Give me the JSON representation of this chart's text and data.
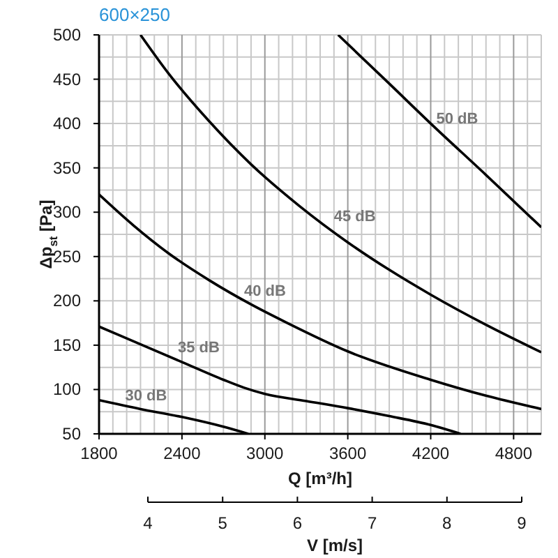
{
  "chart_data": {
    "type": "line",
    "title": "600×250",
    "xlabel": "Q [m³/h]",
    "ylabel": "Δp$_{st}$ [Pa]",
    "x2label": "V [m/s]",
    "xlim": [
      1800,
      5000
    ],
    "xticks": [
      1800,
      {
        "value": 1900,
        "label": null
      },
      {
        "value": 2000,
        "label": null
      },
      {
        "value": 2100,
        "label": null
      },
      {
        "value": 2200,
        "label": null
      },
      {
        "value": 2300,
        "label": null
      },
      2400,
      {
        "value": 2500,
        "label": null
      },
      {
        "value": 2600,
        "label": null
      },
      {
        "value": 2700,
        "label": null
      },
      {
        "value": 2800,
        "label": null
      },
      {
        "value": 2900,
        "label": null
      },
      3000,
      {
        "value": 3100,
        "label": null
      },
      {
        "value": 3200,
        "label": null
      },
      {
        "value": 3300,
        "label": null
      },
      {
        "value": 3400,
        "label": null
      },
      {
        "value": 3500,
        "label": null
      },
      3600,
      {
        "value": 3700,
        "label": null
      },
      {
        "value": 3800,
        "label": null
      },
      {
        "value": 3900,
        "label": null
      },
      {
        "value": 4000,
        "label": null
      },
      {
        "value": 4100,
        "label": null
      },
      4200,
      {
        "value": 4300,
        "label": null
      },
      {
        "value": 4400,
        "label": null
      },
      {
        "value": 4500,
        "label": null
      },
      {
        "value": 4600,
        "label": null
      },
      {
        "value": 4700,
        "label": null
      },
      4800,
      {
        "value": 4900,
        "label": null
      }
    ],
    "ylim": [
      50,
      500
    ],
    "yticks": [
      50,
      {
        "value": 75,
        "label": null
      },
      100,
      {
        "value": 125,
        "label": null
      },
      150,
      {
        "value": 175,
        "label": null
      },
      200,
      {
        "value": 225,
        "label": null
      },
      250,
      {
        "value": 275,
        "label": null
      },
      300,
      {
        "value": 325,
        "label": null
      },
      350,
      {
        "value": 375,
        "label": null
      },
      400,
      {
        "value": 425,
        "label": null
      },
      450,
      {
        "value": 475,
        "label": null
      },
      500
    ],
    "x2lim": [
      4,
      9
    ],
    "x2ticks": [
      4,
      5,
      6,
      7,
      8,
      9
    ],
    "grid": true,
    "marker": "none",
    "line_style": "solid",
    "series": [
      {
        "name": "50 dB",
        "color": "#000000",
        "x": [
          3530,
          3900,
          4200,
          4600,
          5000
        ],
        "values": [
          500,
          445,
          400,
          342,
          283
        ]
      },
      {
        "name": "45 dB",
        "color": "#000000",
        "x": [
          2100,
          2300,
          2600,
          2900,
          3250,
          3600,
          3900,
          4200,
          4600,
          5000
        ],
        "values": [
          500,
          457,
          402,
          354,
          307,
          266,
          235,
          207,
          173,
          142
        ]
      },
      {
        "name": "40 dB",
        "color": "#000000",
        "x": [
          1800,
          2050,
          2300,
          2600,
          2900,
          3150,
          3600,
          4200,
          4600,
          5000
        ],
        "values": [
          320,
          285,
          254,
          223,
          196,
          176,
          143,
          111,
          93,
          78
        ]
      },
      {
        "name": "35 dB",
        "color": "#000000",
        "x": [
          1800,
          2100,
          2400,
          2700,
          2850,
          3000,
          3300,
          3600,
          3900,
          4200,
          4416
        ],
        "values": [
          171,
          151,
          131,
          111,
          102,
          95,
          87,
          79,
          70,
          60,
          50
        ]
      },
      {
        "name": "30 dB",
        "color": "#000000",
        "x": [
          1800,
          2100,
          2400,
          2700,
          2880
        ],
        "values": [
          88,
          78,
          69,
          58,
          50
        ]
      }
    ]
  }
}
